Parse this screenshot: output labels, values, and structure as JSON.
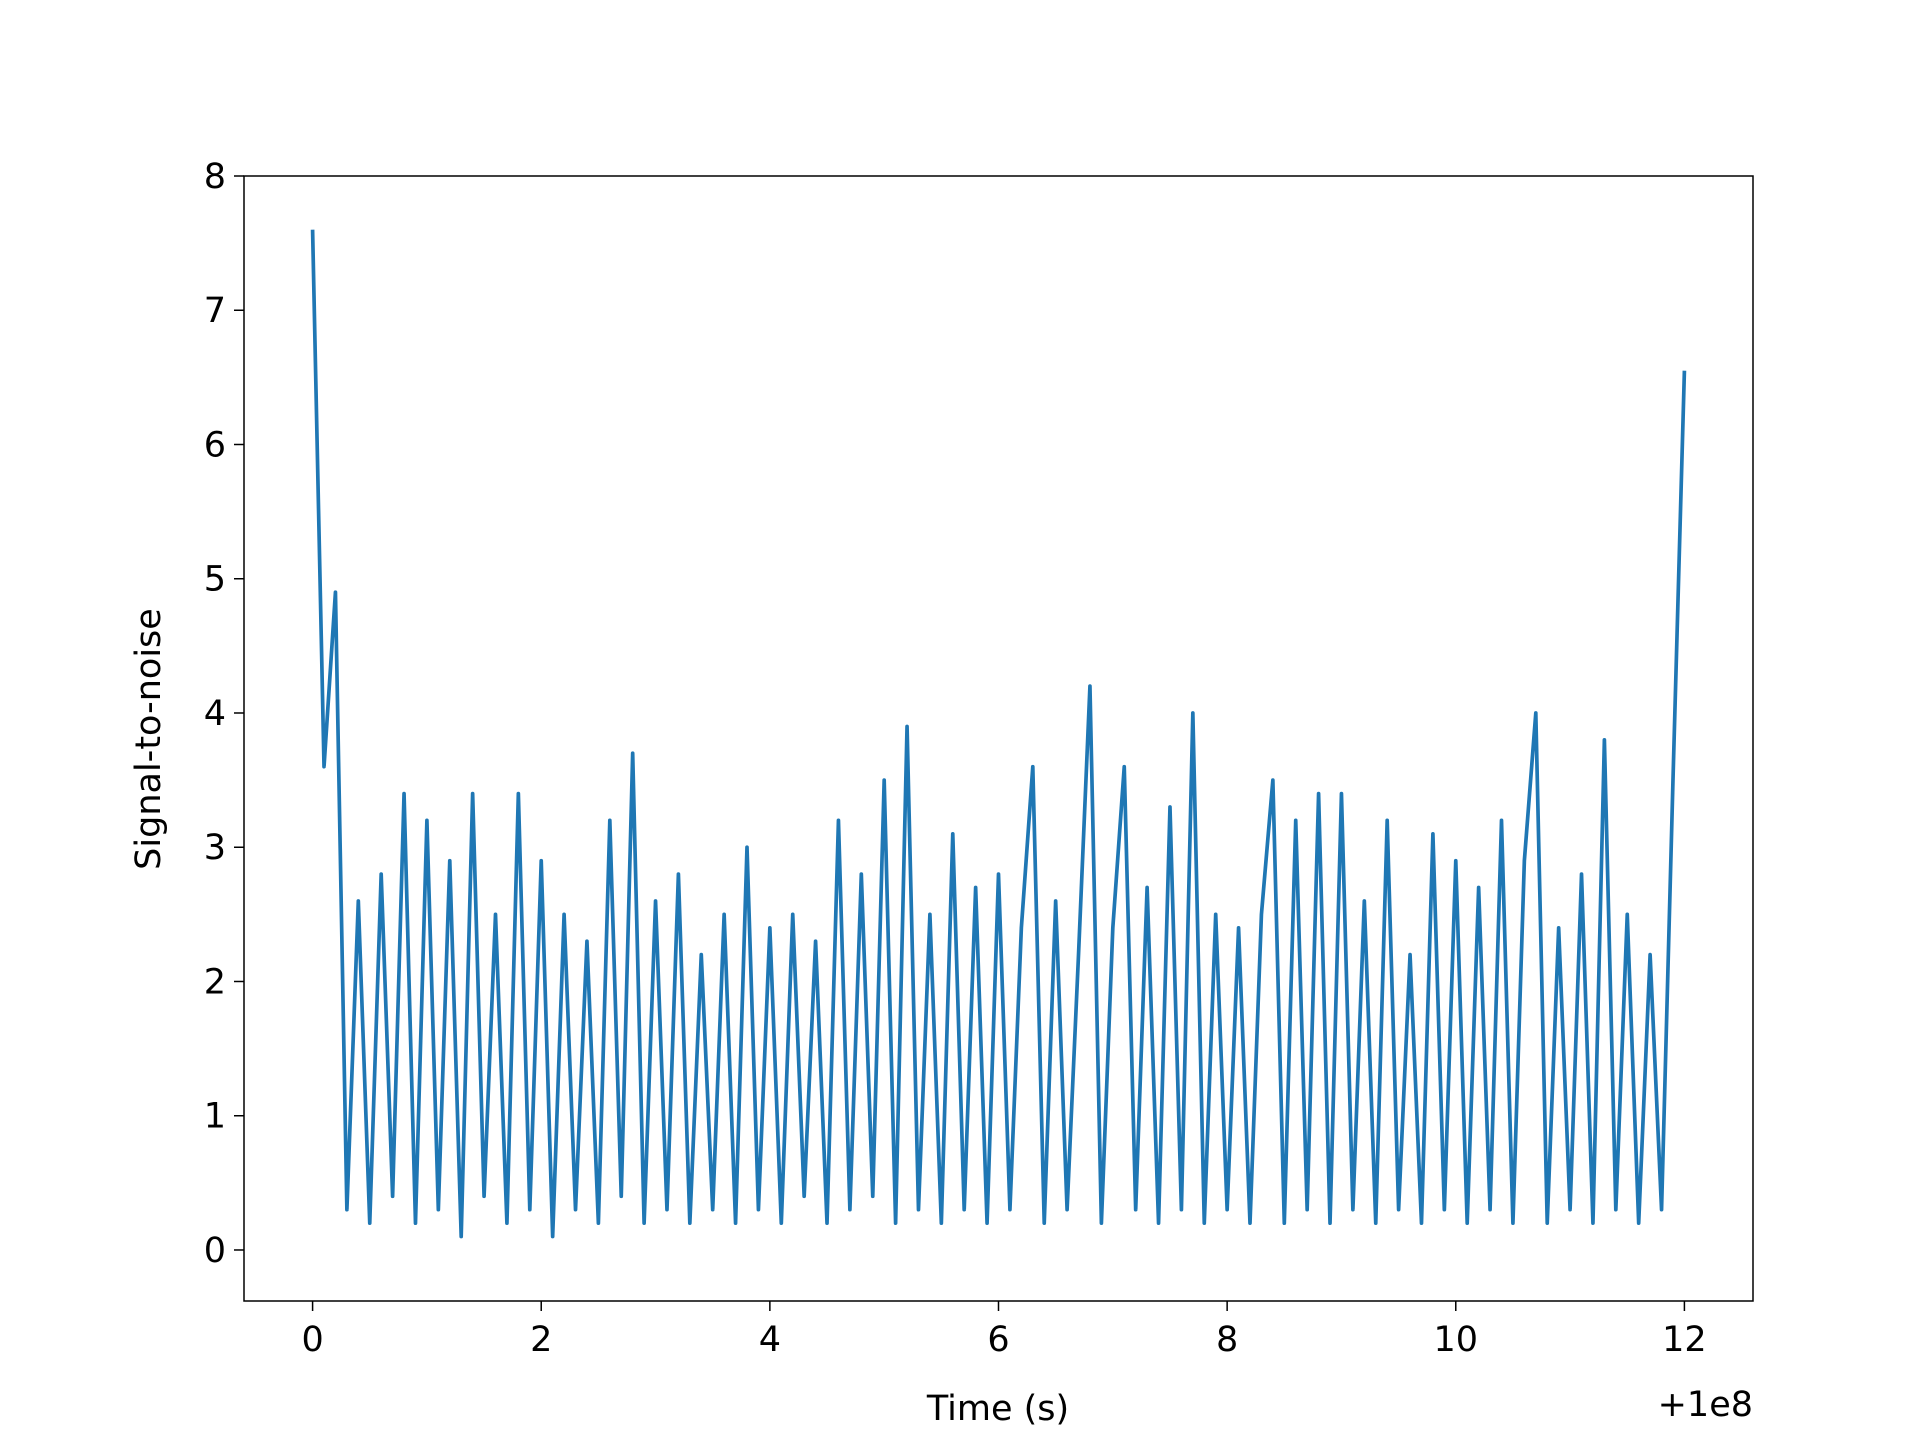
{
  "chart_data": {
    "type": "line",
    "xlabel": "Time (s)",
    "ylabel": "Signal-to-noise",
    "x_offset_label": "+1e8",
    "color": "#1f77b4",
    "x": [
      0,
      0.1,
      0.2,
      0.3,
      0.4,
      0.5,
      0.6,
      0.7,
      0.8,
      0.9,
      1,
      1.1,
      1.2,
      1.3,
      1.4,
      1.5,
      1.6,
      1.7,
      1.8,
      1.9,
      2,
      2.1,
      2.2,
      2.3,
      2.4,
      2.5,
      2.6,
      2.7,
      2.8,
      2.9,
      3,
      3.1,
      3.2,
      3.3,
      3.4,
      3.5,
      3.6,
      3.7,
      3.8,
      3.9,
      4,
      4.1,
      4.2,
      4.3,
      4.4,
      4.5,
      4.6,
      4.7,
      4.8,
      4.9,
      5,
      5.1,
      5.2,
      5.3,
      5.4,
      5.5,
      5.6,
      5.7,
      5.8,
      5.9,
      6,
      6.1,
      6.2,
      6.3,
      6.4,
      6.5,
      6.6,
      6.7,
      6.8,
      6.9,
      7,
      7.1,
      7.2,
      7.3,
      7.4,
      7.5,
      7.6,
      7.7,
      7.8,
      7.9,
      8,
      8.1,
      8.2,
      8.3,
      8.4,
      8.5,
      8.6,
      8.7,
      8.8,
      8.9,
      9,
      9.1,
      9.2,
      9.3,
      9.4,
      9.5,
      9.6,
      9.7,
      9.8,
      9.9,
      10,
      10.1,
      10.2,
      10.3,
      10.4,
      10.5,
      10.6,
      10.7,
      10.8,
      10.9,
      11,
      11.1,
      11.2,
      11.3,
      11.4,
      11.5,
      11.6,
      11.7,
      11.8,
      11.9,
      12
    ],
    "values": [
      7.6,
      3.6,
      4.9,
      0.3,
      2.6,
      0.2,
      2.8,
      0.4,
      3.4,
      0.2,
      3.2,
      0.3,
      2.9,
      0.1,
      3.4,
      0.4,
      2.5,
      0.2,
      3.4,
      0.3,
      2.9,
      0.1,
      2.5,
      0.3,
      2.3,
      0.2,
      3.2,
      0.4,
      3.7,
      0.2,
      2.6,
      0.3,
      2.8,
      0.2,
      2.2,
      0.3,
      2.5,
      0.2,
      3.0,
      0.3,
      2.4,
      0.2,
      2.5,
      0.4,
      2.3,
      0.2,
      3.2,
      0.3,
      2.8,
      0.4,
      3.5,
      0.2,
      3.9,
      0.3,
      2.5,
      0.2,
      3.1,
      0.3,
      2.7,
      0.2,
      2.8,
      0.3,
      2.4,
      3.6,
      0.2,
      2.6,
      0.3,
      2.2,
      4.2,
      0.2,
      2.4,
      3.6,
      0.3,
      2.7,
      0.2,
      3.3,
      0.3,
      4.0,
      0.2,
      2.5,
      0.3,
      2.4,
      0.2,
      2.5,
      3.5,
      0.2,
      3.2,
      0.3,
      3.4,
      0.2,
      3.4,
      0.3,
      2.6,
      0.2,
      3.2,
      0.3,
      2.2,
      0.2,
      3.1,
      0.3,
      2.9,
      0.2,
      2.7,
      0.3,
      3.2,
      0.2,
      2.9,
      4.0,
      0.2,
      2.4,
      0.3,
      2.8,
      0.2,
      3.8,
      0.3,
      2.5,
      0.2,
      2.2,
      0.3,
      3.5,
      6.55
    ],
    "xlim": [
      -0.6,
      12.6
    ],
    "xticks": [
      0,
      2,
      4,
      6,
      8,
      10,
      12
    ],
    "ylim": [
      -0.38,
      8
    ],
    "yticks": [
      0,
      1,
      2,
      3,
      4,
      5,
      6,
      7,
      8
    ]
  }
}
